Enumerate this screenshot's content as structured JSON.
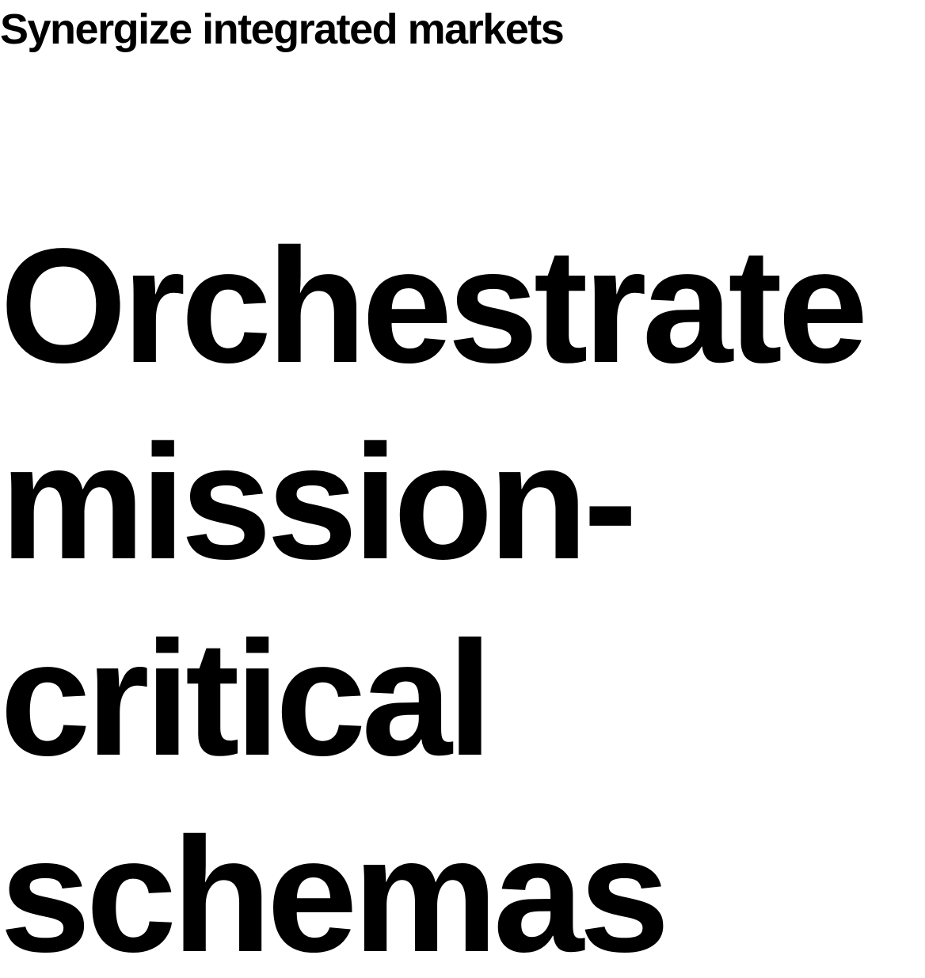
{
  "page": {
    "eyebrow": "Synergize integrated markets",
    "headline_lines": [
      "Orchestrate",
      "mission-",
      "critical",
      "schemas"
    ]
  },
  "colors": {
    "background": "#ffffff",
    "text": "#000000"
  }
}
